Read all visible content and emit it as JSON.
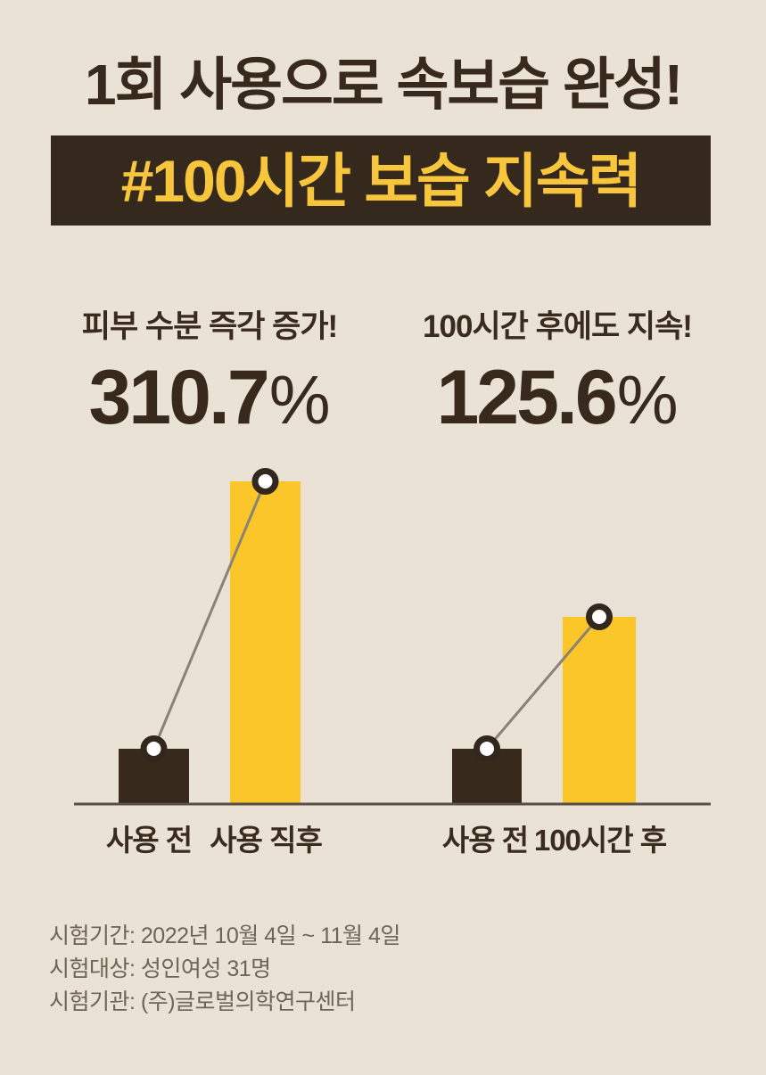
{
  "page": {
    "title": "1회 사용으로 속보습 완성!",
    "background_color": "#EAE2D4",
    "brand_dark_brown": "#38291D",
    "brand_yellow": "#FBC62A"
  },
  "banner": {
    "text": "#100시간 보습 지속력",
    "bg_color": "#35281D",
    "text_color": "#F8C63C"
  },
  "stats": [
    {
      "label": "피부 수분 즉각 증가!",
      "value": "310.7",
      "unit": "%"
    },
    {
      "label": "100시간 후에도 지속!",
      "value": "125.6",
      "unit": "%"
    }
  ],
  "chart_data": [
    {
      "type": "bar",
      "title": "피부 수분 즉각 증가 310.7%",
      "categories": [
        "사용 전",
        "사용 직후"
      ],
      "values": [
        17,
        100
      ],
      "values_note": "relative bar heights in % of tallest bar (no numeric axis shown)",
      "annotation": "사용 직후 피부 수분 310.7% 증가",
      "bar_colors": [
        "#38291D",
        "#FBC62A"
      ],
      "marker": "white dot with dark ring on each bar top, connected by gray line",
      "grid": false,
      "legend": false
    },
    {
      "type": "bar",
      "title": "100시간 후에도 지속 125.6%",
      "categories": [
        "사용 전",
        "100시간 후"
      ],
      "values": [
        17,
        58
      ],
      "values_note": "relative bar heights in % of tallest bar (no numeric axis shown)",
      "annotation": "100시간 후에도 수분 125.6% 지속",
      "bar_colors": [
        "#38291D",
        "#FBC62A"
      ],
      "marker": "white dot with dark ring on each bar top, connected by gray line",
      "grid": false,
      "legend": false
    }
  ],
  "chart_style": {
    "axis_color": "#564F45",
    "connector_color": "#8C8173",
    "point_fill": "#FFFFFF",
    "point_ring": "#32271D"
  },
  "footnotes": [
    "시험기간: 2022년 10월 4일 ~ 11월 4일",
    "시험대상: 성인여성 31명",
    "시험기관: (주)글로벌의학연구센터"
  ]
}
